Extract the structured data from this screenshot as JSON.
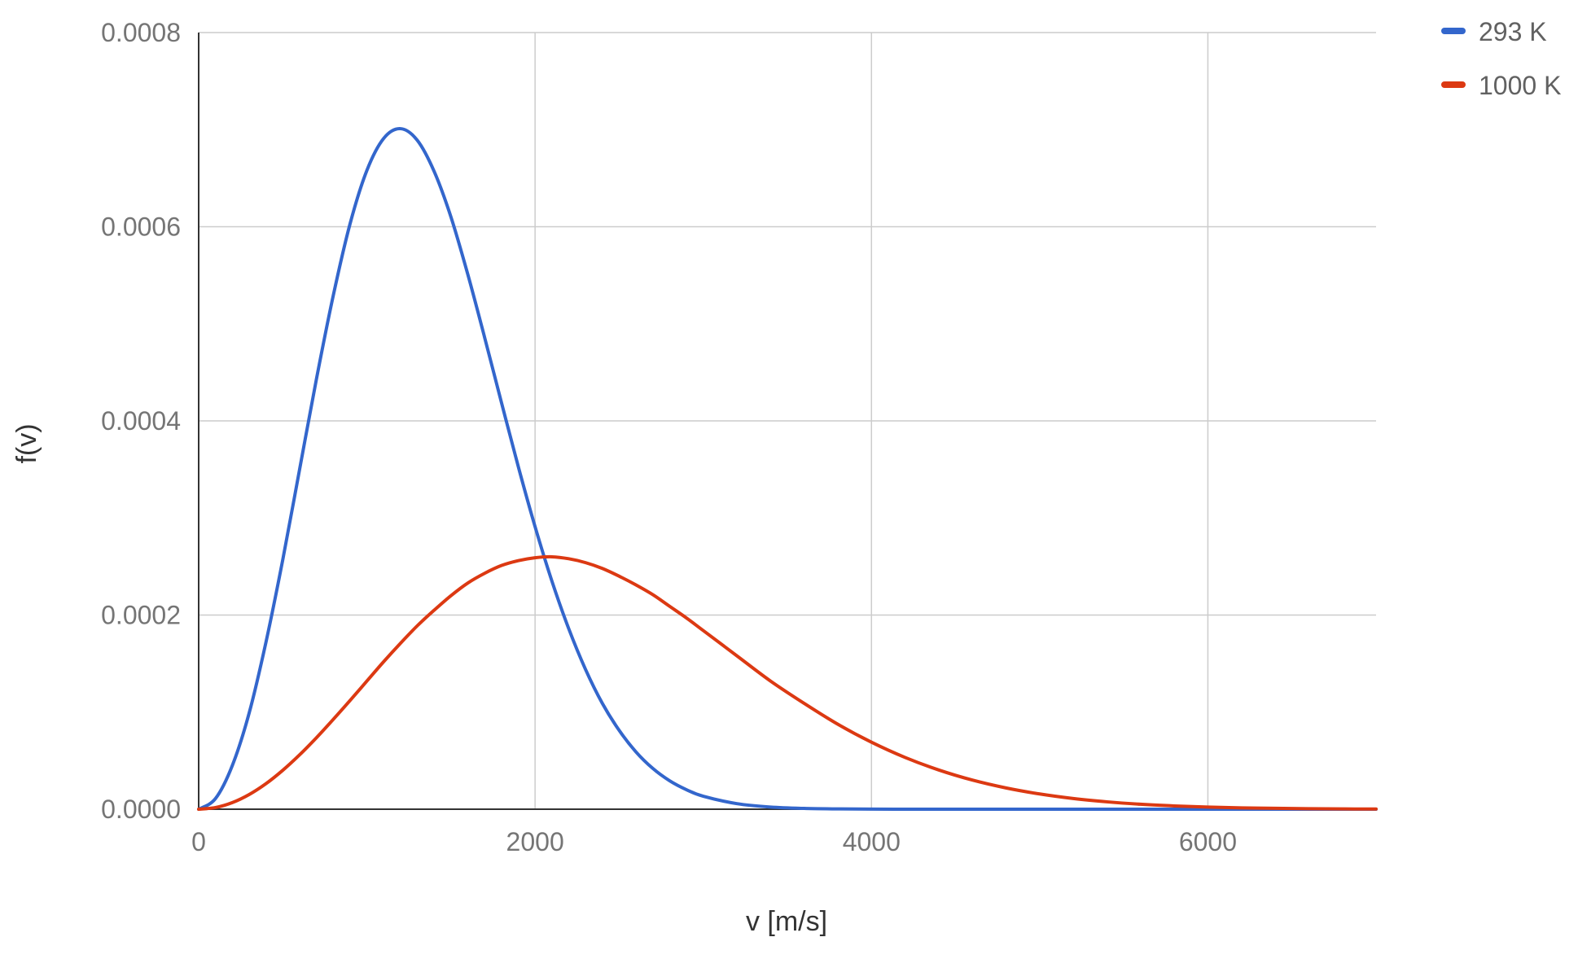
{
  "chart_data": {
    "type": "line",
    "title": "",
    "xlabel": "v [m/s]",
    "ylabel": "f(v)",
    "xlim": [
      0,
      7000
    ],
    "ylim": [
      0,
      0.0008
    ],
    "xticks": [
      0,
      2000,
      4000,
      6000
    ],
    "xtick_labels": [
      "0",
      "2000",
      "4000",
      "6000"
    ],
    "yticks": [
      0,
      0.0002,
      0.0004,
      0.0006,
      0.0008
    ],
    "ytick_labels": [
      "0.0000",
      "0.0002",
      "0.0004",
      "0.0006",
      "0.0008"
    ],
    "grid": true,
    "legend_position": "top-right",
    "colors": {
      "series_293": "#3366cc",
      "series_1000": "#dc3912",
      "grid": "#cccccc",
      "axis": "#333333"
    },
    "x": [
      0,
      100,
      200,
      300,
      400,
      500,
      600,
      700,
      800,
      900,
      1000,
      1100,
      1200,
      1300,
      1400,
      1500,
      1600,
      1700,
      1800,
      1900,
      2000,
      2100,
      2200,
      2300,
      2400,
      2500,
      2600,
      2700,
      2800,
      2900,
      3000,
      3200,
      3400,
      3600,
      3800,
      4000,
      4200,
      4400,
      4600,
      4800,
      5000,
      5200,
      5400,
      5600,
      5800,
      6000,
      6200,
      6400,
      6600,
      6800,
      7000
    ],
    "series": [
      {
        "name": "293 K",
        "values": [
          0,
          1.1e-05,
          4.5e-05,
          9.9e-05,
          0.000172,
          0.000257,
          0.00035,
          0.000443,
          0.000529,
          0.000603,
          0.000658,
          0.000691,
          0.000701,
          0.000689,
          0.000657,
          0.00061,
          0.000551,
          0.000486,
          0.000419,
          0.000353,
          0.000291,
          0.000235,
          0.000186,
          0.000144,
          0.000109,
          8.12e-05,
          5.9e-05,
          4.2e-05,
          2.93e-05,
          2.01e-05,
          1.34e-05,
          5.7e-06,
          2.2e-06,
          8e-07,
          3e-07,
          1e-07,
          0,
          0,
          0,
          0,
          0,
          0,
          0,
          0,
          0,
          0,
          0,
          0,
          0,
          0,
          0
        ]
      },
      {
        "name": "1000 K",
        "values": [
          0,
          1.7e-06,
          6.8e-06,
          1.51e-05,
          2.63e-05,
          4.01e-05,
          5.6e-05,
          7.36e-05,
          9.25e-05,
          0.000112,
          0.000132,
          0.000152,
          0.000171,
          0.000189,
          0.000205,
          0.00022,
          0.000233,
          0.000243,
          0.000251,
          0.000256,
          0.000259,
          0.00026,
          0.000258,
          0.000254,
          0.000248,
          0.00024,
          0.000231,
          0.000221,
          0.000209,
          0.000197,
          0.000184,
          0.000158,
          0.000132,
          0.000109,
          8.75e-05,
          6.9e-05,
          5.33e-05,
          4.04e-05,
          3e-05,
          2.19e-05,
          1.57e-05,
          1.1e-05,
          7.6e-06,
          5.1e-06,
          3.4e-06,
          2.2e-06,
          1.4e-06,
          9e-07,
          5e-07,
          3e-07,
          2e-07
        ]
      }
    ]
  }
}
